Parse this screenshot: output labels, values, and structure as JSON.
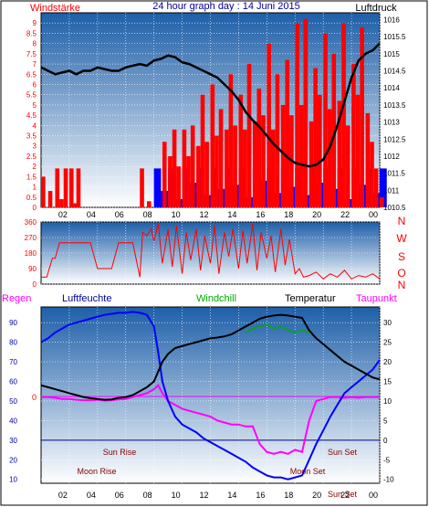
{
  "header": {
    "left_label": "Windstärke",
    "title": "24 hour graph day : 14 Juni 2015",
    "right_label": "Luftdruck"
  },
  "time_ticks": [
    "02",
    "04",
    "06",
    "08",
    "10",
    "12",
    "14",
    "16",
    "18",
    "20",
    "22",
    "00"
  ],
  "colors": {
    "frame": "#000000",
    "plot_top": "#1e5fa8",
    "plot_bottom": "#ffffff",
    "red_axis": "#ff0000",
    "blue_axis": "#0000aa",
    "wind": "#ff0000",
    "gust": "#0000ff",
    "pressure": "#000000",
    "humidity": "#0000ff",
    "temperature": "#000000",
    "windchill": "#00aa00",
    "dewpoint": "#ff00ff",
    "rain": "#ff0000",
    "events": "#8b0000"
  },
  "chart_data": [
    {
      "type": "line",
      "name_left": "Windstärke",
      "name_right": "Luftdruck",
      "x_unit": "hour",
      "xlim": [
        0,
        24
      ],
      "ylim_left": [
        0,
        9.5
      ],
      "ylim_right": [
        1010.5,
        1016.2
      ],
      "left_ticks": [
        "0",
        "0.5",
        "1",
        "1.5",
        "2",
        "2.5",
        "3",
        "3.5",
        "4",
        "4.5",
        "5",
        "5.5",
        "6",
        "6.5",
        "7",
        "7.5",
        "8",
        "8.5",
        "9"
      ],
      "right_ticks": [
        "1010.5",
        "1011",
        "1011.5",
        "1012",
        "1012.5",
        "1013",
        "1013.5",
        "1014",
        "1014.5",
        "1015",
        "1015.5",
        "1016"
      ],
      "series": [
        {
          "name": "wind",
          "x": [
            0.0,
            0.5,
            1.0,
            1.3,
            1.6,
            2.0,
            2.3,
            2.5,
            3.0,
            4.0,
            5.0,
            6.0,
            6.3,
            6.6,
            7.0,
            7.5,
            7.8,
            8.0,
            8.3,
            8.6,
            9.0,
            9.3,
            9.6,
            10.0,
            10.3,
            10.6,
            11.0,
            11.3,
            11.6,
            12.0,
            12.3,
            12.6,
            13.0,
            13.3,
            13.6,
            14.0,
            14.3,
            14.6,
            15.0,
            15.3,
            15.6,
            16.0,
            16.3,
            16.6,
            17.0,
            17.3,
            17.6,
            18.0,
            18.3,
            18.6,
            19.0,
            19.3,
            19.6,
            20.0,
            20.3,
            20.6,
            21.0,
            21.3,
            21.6,
            22.0,
            22.3,
            22.6,
            23.0,
            23.3,
            23.6,
            24.0
          ],
          "values": [
            1.5,
            0.8,
            1.9,
            0.4,
            1.9,
            1.9,
            0.2,
            1.9,
            0,
            0,
            0,
            0,
            0,
            0,
            1.9,
            0.3,
            0,
            0,
            0,
            3.2,
            2.5,
            3.8,
            2.0,
            3.8,
            2.5,
            4.0,
            3.0,
            5.5,
            3.2,
            6.0,
            3.5,
            4.8,
            3.8,
            6.5,
            4.0,
            5.5,
            3.8,
            7.0,
            4.2,
            5.8,
            4.5,
            8.0,
            3.8,
            6.5,
            5.0,
            7.2,
            4.5,
            9.0,
            5.0,
            9.2,
            4.2,
            6.8,
            5.5,
            8.5,
            4.8,
            7.5,
            5.2,
            9.0,
            4.0,
            7.0,
            5.5,
            8.8,
            4.6,
            3.2,
            1.9,
            0.5
          ]
        },
        {
          "name": "gust",
          "x": [
            8.0,
            8.5,
            9.0,
            9.5,
            10.0,
            10.5,
            11.0,
            11.5,
            12.0,
            12.5,
            13.0,
            13.5,
            14.0,
            14.5,
            15.0,
            15.5,
            16.0,
            16.5,
            17.0,
            17.5,
            18.0,
            18.5,
            19.0,
            19.5,
            20.0,
            20.5,
            21.0,
            21.5,
            22.0,
            22.5,
            23.0,
            23.5,
            24.0
          ],
          "values": [
            1.9,
            0.8,
            1.9,
            0.4,
            1.9,
            1.2,
            1.9,
            0.6,
            1.9,
            0.9,
            1.9,
            1.1,
            1.9,
            0.5,
            1.9,
            1.3,
            1.9,
            0.7,
            1.9,
            1.0,
            1.9,
            0.6,
            1.9,
            1.2,
            1.9,
            0.9,
            1.9,
            0.4,
            1.9,
            1.1,
            1.9,
            0.7,
            1.9
          ]
        },
        {
          "name": "pressure",
          "x": [
            0,
            0.5,
            1,
            1.5,
            2,
            2.5,
            3,
            3.5,
            4,
            4.5,
            5,
            5.5,
            6,
            6.5,
            7,
            7.5,
            8,
            8.5,
            9,
            9.5,
            10,
            10.5,
            11,
            11.5,
            12,
            12.5,
            13,
            13.5,
            14,
            14.5,
            15,
            15.5,
            16,
            16.5,
            17,
            17.5,
            18,
            18.5,
            19,
            19.5,
            20,
            20.5,
            21,
            21.5,
            22,
            22.5,
            23,
            23.5,
            24
          ],
          "values": [
            1014.6,
            1014.5,
            1014.4,
            1014.45,
            1014.5,
            1014.4,
            1014.5,
            1014.5,
            1014.6,
            1014.55,
            1014.5,
            1014.5,
            1014.6,
            1014.65,
            1014.7,
            1014.65,
            1014.8,
            1014.85,
            1014.95,
            1014.9,
            1014.75,
            1014.7,
            1014.6,
            1014.5,
            1014.4,
            1014.3,
            1014.1,
            1013.9,
            1013.65,
            1013.3,
            1013.05,
            1012.85,
            1012.6,
            1012.35,
            1012.15,
            1011.95,
            1011.8,
            1011.75,
            1011.7,
            1011.75,
            1011.9,
            1012.3,
            1012.9,
            1013.6,
            1014.3,
            1014.8,
            1015.0,
            1015.1,
            1015.3
          ]
        }
      ]
    },
    {
      "type": "line",
      "name": "wind direction",
      "x_unit": "hour",
      "xlim": [
        0,
        24
      ],
      "ylim": [
        0,
        360
      ],
      "left_ticks": [
        "0",
        "90",
        "180",
        "270",
        "360"
      ],
      "right_labels": [
        "N",
        "W",
        "S",
        "O",
        "N"
      ],
      "series": [
        {
          "name": "direction",
          "x": [
            0,
            0.4,
            0.8,
            1.0,
            1.3,
            1.6,
            2.0,
            2.5,
            3.0,
            3.5,
            4.0,
            4.5,
            5.0,
            5.5,
            6.0,
            6.5,
            7.0,
            7.2,
            7.5,
            7.8,
            8.0,
            8.3,
            8.6,
            9.0,
            9.3,
            9.6,
            10.0,
            10.3,
            10.6,
            11.0,
            11.3,
            11.6,
            12.0,
            12.3,
            12.6,
            13.0,
            13.3,
            13.6,
            14.0,
            14.3,
            14.6,
            15.0,
            15.3,
            15.6,
            16.0,
            16.3,
            16.6,
            17.0,
            17.3,
            17.6,
            18.0,
            18.3,
            18.6,
            19.0,
            19.5,
            20.0,
            20.5,
            21.0,
            21.5,
            22.0,
            22.5,
            23.0,
            23.5,
            24.0
          ],
          "values": [
            40,
            40,
            150,
            150,
            240,
            240,
            240,
            240,
            240,
            240,
            90,
            90,
            90,
            240,
            240,
            240,
            40,
            300,
            280,
            320,
            250,
            350,
            120,
            320,
            100,
            340,
            60,
            300,
            140,
            320,
            80,
            280,
            120,
            340,
            60,
            300,
            160,
            320,
            90,
            310,
            120,
            350,
            80,
            300,
            150,
            280,
            70,
            320,
            110,
            260,
            60,
            90,
            40,
            50,
            70,
            30,
            60,
            40,
            80,
            30,
            50,
            40,
            60,
            30
          ]
        }
      ]
    },
    {
      "type": "line",
      "name_left": "Luftfeuchte",
      "name_right": "Temperatur",
      "x_unit": "hour",
      "xlim": [
        0,
        24
      ],
      "ylim_left": [
        8,
        98
      ],
      "ylim_right": [
        -11,
        34
      ],
      "left_ticks": [
        "10",
        "20",
        "30",
        "40",
        "50",
        "60",
        "70",
        "80",
        "90"
      ],
      "right_ticks": [
        "-10",
        "-5",
        "0",
        "5",
        "10",
        "15",
        "20",
        "25",
        "30"
      ],
      "extra_labels": {
        "rain": "Regen",
        "rain_zero": "0",
        "windchill": "Windchill",
        "dewpoint": "Taupunkt",
        "sun_rise": "Sun Rise",
        "moon_rise": "Moon Rise",
        "sun_set": "Sun Set",
        "moon_set": "Moon Set",
        "sun_set_bottom": "Sun Set"
      },
      "series": [
        {
          "name": "humidity",
          "x": [
            0,
            0.5,
            1,
            1.5,
            2,
            2.5,
            3,
            3.5,
            4,
            4.5,
            5,
            5.5,
            6,
            6.5,
            7,
            7.5,
            8,
            8.3,
            8.6,
            9,
            9.5,
            10,
            10.5,
            11,
            11.5,
            12,
            12.5,
            13,
            13.5,
            14,
            14.5,
            15,
            15.5,
            16,
            16.5,
            17,
            17.5,
            18,
            18.5,
            19,
            19.5,
            20,
            20.5,
            21,
            21.5,
            22,
            22.5,
            23,
            23.5,
            24
          ],
          "values": [
            80,
            82,
            85,
            87,
            89,
            90,
            91,
            92,
            93,
            94,
            94.5,
            95,
            95,
            95.5,
            95,
            94,
            88,
            75,
            60,
            50,
            42,
            38,
            36,
            34,
            31,
            29,
            27,
            25,
            23,
            21,
            19,
            16,
            14,
            12,
            11,
            11,
            10,
            11,
            12,
            20,
            28,
            35,
            42,
            48,
            54,
            57,
            60,
            63,
            66,
            71
          ]
        },
        {
          "name": "temperature",
          "x": [
            0,
            0.5,
            1,
            1.5,
            2,
            2.5,
            3,
            3.5,
            4,
            4.5,
            5,
            5.5,
            6,
            6.5,
            7,
            7.5,
            8,
            8.3,
            8.6,
            9,
            9.5,
            10,
            10.5,
            11,
            11.5,
            12,
            12.5,
            13,
            13.5,
            14,
            14.5,
            15,
            15.5,
            16,
            16.5,
            17,
            17.5,
            18,
            18.5,
            19,
            19.5,
            20,
            20.5,
            21,
            21.5,
            22,
            22.5,
            23,
            23.5,
            24
          ],
          "values": [
            14,
            13.5,
            13,
            12.5,
            12,
            11.5,
            11,
            10.7,
            10.5,
            10.3,
            10.4,
            10.8,
            11,
            11.5,
            12.5,
            13.5,
            15,
            17.5,
            20,
            22,
            23.5,
            24,
            24.5,
            25,
            25.5,
            26,
            26.2,
            26.5,
            27,
            28,
            29,
            30,
            31,
            31.5,
            31.8,
            32,
            31.8,
            31.5,
            31.2,
            28,
            26,
            24.5,
            23,
            21.5,
            20,
            19,
            18,
            17,
            16,
            15.5
          ]
        },
        {
          "name": "windchill",
          "x": [
            14.5,
            15,
            15.5,
            16,
            16.5,
            17,
            17.5,
            18,
            18.5,
            19
          ],
          "values": [
            27.5,
            28.5,
            29,
            29.5,
            28.5,
            29,
            28,
            27.5,
            28,
            27.5
          ]
        },
        {
          "name": "dewpoint",
          "x": [
            0,
            0.5,
            1,
            1.5,
            2,
            2.5,
            3,
            3.5,
            4,
            4.5,
            5,
            5.5,
            6,
            6.5,
            7,
            7.5,
            8,
            8.3,
            8.6,
            9,
            9.5,
            10,
            10.5,
            11,
            11.5,
            12,
            12.5,
            13,
            13.5,
            14,
            14.5,
            15,
            15.5,
            16,
            16.5,
            17,
            17.5,
            18,
            18.5,
            19,
            19.5,
            20,
            20.5,
            21,
            21.5,
            22,
            22.5,
            23,
            23.5,
            24
          ],
          "values": [
            11,
            11,
            10.8,
            10.5,
            10.5,
            10.3,
            10.2,
            10.2,
            10.3,
            10.1,
            10.2,
            10.4,
            10.5,
            11,
            11.5,
            12,
            13,
            14,
            12,
            10,
            9,
            8,
            7.5,
            7,
            6.5,
            6,
            5,
            4.5,
            4,
            4,
            3.5,
            3.5,
            -1,
            -3,
            -3.5,
            -3,
            -3.5,
            -2.5,
            -3,
            5,
            10,
            10.5,
            11,
            11,
            10.8,
            11,
            10.8,
            11,
            11,
            11
          ]
        }
      ]
    }
  ]
}
